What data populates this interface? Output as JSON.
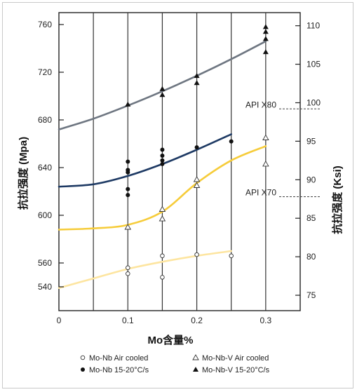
{
  "chart_data": {
    "type": "scatter",
    "xlabel": "Mo含量%",
    "ylabel_left": "抗拉强度 (Mpa)",
    "ylabel_right": "抗拉强度 (Ksi)",
    "xlim": [
      0,
      0.35
    ],
    "ylim_left": [
      520,
      770
    ],
    "ylim_right": [
      73.0,
      111.7
    ],
    "x_ticks": [
      0,
      0.1,
      0.2,
      0.3
    ],
    "x_tick_labels": [
      "0",
      "0.1",
      "0.2",
      "0.3"
    ],
    "y_left_ticks": [
      540,
      560,
      600,
      640,
      680,
      720,
      760
    ],
    "y_left_tick_labels": [
      "540",
      "560",
      "600",
      "640",
      "680",
      "720",
      "760"
    ],
    "y_right_ticks": [
      75,
      80,
      85,
      90,
      95,
      100,
      105,
      110
    ],
    "y_right_tick_labels": [
      "75",
      "80",
      "85",
      "90",
      "95",
      "100",
      "105",
      "110"
    ],
    "vertical_grid_x": [
      0.05,
      0.1,
      0.15,
      0.2,
      0.25,
      0.3
    ],
    "reference_lines": [
      {
        "label": "API X80",
        "ksi": 99.2
      },
      {
        "label": "API X70",
        "ksi": 87.8
      }
    ],
    "series": [
      {
        "name": "Mo-Nb Air cooled",
        "marker": "open-circle",
        "color": "#fde5a0",
        "points": [
          [
            0.1,
            556
          ],
          [
            0.1,
            551
          ],
          [
            0.15,
            566
          ],
          [
            0.15,
            548
          ],
          [
            0.2,
            567
          ],
          [
            0.25,
            566
          ]
        ],
        "curve": [
          [
            0,
            539
          ],
          [
            0.05,
            547
          ],
          [
            0.1,
            555
          ],
          [
            0.15,
            561
          ],
          [
            0.2,
            566
          ],
          [
            0.25,
            570
          ]
        ]
      },
      {
        "name": "Mo-Nb 15-20°C/s",
        "marker": "filled-circle",
        "color": "#1e3a64",
        "points": [
          [
            0.1,
            645
          ],
          [
            0.1,
            638
          ],
          [
            0.1,
            636
          ],
          [
            0.1,
            622
          ],
          [
            0.1,
            617
          ],
          [
            0.15,
            655
          ],
          [
            0.15,
            650
          ],
          [
            0.15,
            646
          ],
          [
            0.15,
            643
          ],
          [
            0.2,
            657
          ],
          [
            0.25,
            662
          ]
        ],
        "curve": [
          [
            0,
            624
          ],
          [
            0.05,
            626
          ],
          [
            0.1,
            633
          ],
          [
            0.15,
            643
          ],
          [
            0.2,
            655
          ],
          [
            0.25,
            668
          ]
        ]
      },
      {
        "name": "Mo-Nb-V Air cooled",
        "marker": "open-triangle",
        "color": "#f6cc3a",
        "points": [
          [
            0.1,
            590
          ],
          [
            0.15,
            605
          ],
          [
            0.15,
            597
          ],
          [
            0.2,
            630
          ],
          [
            0.2,
            625
          ],
          [
            0.3,
            665
          ],
          [
            0.3,
            643
          ]
        ],
        "curve": [
          [
            0,
            588
          ],
          [
            0.05,
            589
          ],
          [
            0.1,
            592
          ],
          [
            0.15,
            603
          ],
          [
            0.2,
            627
          ],
          [
            0.25,
            646
          ],
          [
            0.3,
            658
          ]
        ]
      },
      {
        "name": "Mo-Nb-V 15-20°C/s",
        "marker": "filled-triangle",
        "color": "#6e7681",
        "points": [
          [
            0.1,
            693
          ],
          [
            0.15,
            706
          ],
          [
            0.15,
            701
          ],
          [
            0.2,
            717
          ],
          [
            0.2,
            711
          ],
          [
            0.3,
            758
          ],
          [
            0.3,
            754
          ],
          [
            0.3,
            748
          ],
          [
            0.3,
            737
          ]
        ],
        "curve": [
          [
            0,
            672
          ],
          [
            0.05,
            681
          ],
          [
            0.1,
            692
          ],
          [
            0.15,
            704
          ],
          [
            0.2,
            717
          ],
          [
            0.25,
            731
          ],
          [
            0.3,
            746
          ]
        ]
      }
    ],
    "legend_position": "bottom"
  }
}
